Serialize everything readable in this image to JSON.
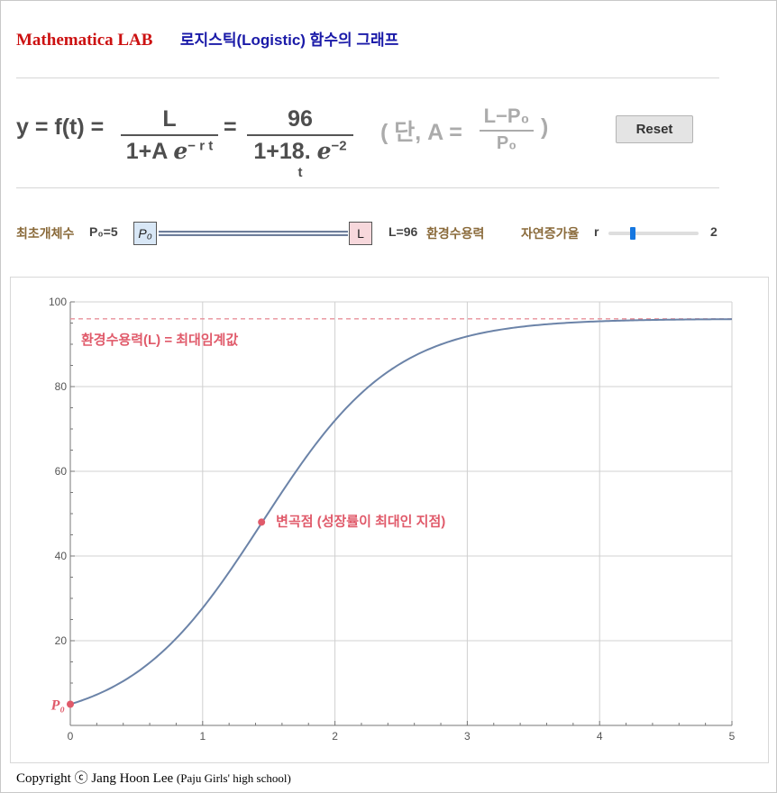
{
  "header": {
    "brand": "Mathematica LAB",
    "title": "로지스틱(Logistic) 함수의 그래프"
  },
  "formula": {
    "lhs": "y = f(t) =",
    "frac1_num": "L",
    "frac1_den_a": "1+A ",
    "frac1_den_e": "ℯ",
    "frac1_den_exp": "− r t",
    "eq": "=",
    "frac2_num": "96",
    "frac2_den_a": "1+18. ",
    "frac2_den_e": "ℯ",
    "frac2_den_exp": "−2 t",
    "note_open": "( 단, A =",
    "note_num": "L−P₀",
    "note_den": "P₀",
    "note_close": ")"
  },
  "reset_label": "Reset",
  "controls": {
    "p0_label": "최초개체수",
    "p0_value": "P₀=5",
    "p0_handle": "P₀",
    "l_handle": "L",
    "l_value": "L=96",
    "l_label": "환경수용력",
    "r_label": "자연증가율",
    "r_symbol": "r",
    "r_value": "2",
    "r_fraction": 0.25
  },
  "chart_data": {
    "type": "line",
    "xlim": [
      0,
      5
    ],
    "ylim": [
      0,
      100
    ],
    "x_ticks": [
      "0",
      "1",
      "2",
      "3",
      "4",
      "5"
    ],
    "y_ticks": [
      "20",
      "40",
      "60",
      "80",
      "100"
    ],
    "grid": true,
    "series": [
      {
        "color": "#6b83a8",
        "function": "96/(1+18*exp(-2*t))",
        "L": 96,
        "P0": 5,
        "r": 2
      }
    ],
    "asymptote": {
      "y": 96,
      "color": "#e8909a",
      "label": "환경수용력(L) = 최대임계값"
    },
    "points": [
      {
        "x": 0,
        "y": 5,
        "label": "P₀",
        "color": "#e05a6a"
      },
      {
        "x": 1.4452,
        "y": 48,
        "label": "변곡점 (성장률이 최대인 지점)",
        "color": "#e05a6a"
      }
    ]
  },
  "copyright": {
    "main": "Copyright ⓒ Jang Hoon Lee ",
    "school": "(Paju Girls' high school)"
  }
}
